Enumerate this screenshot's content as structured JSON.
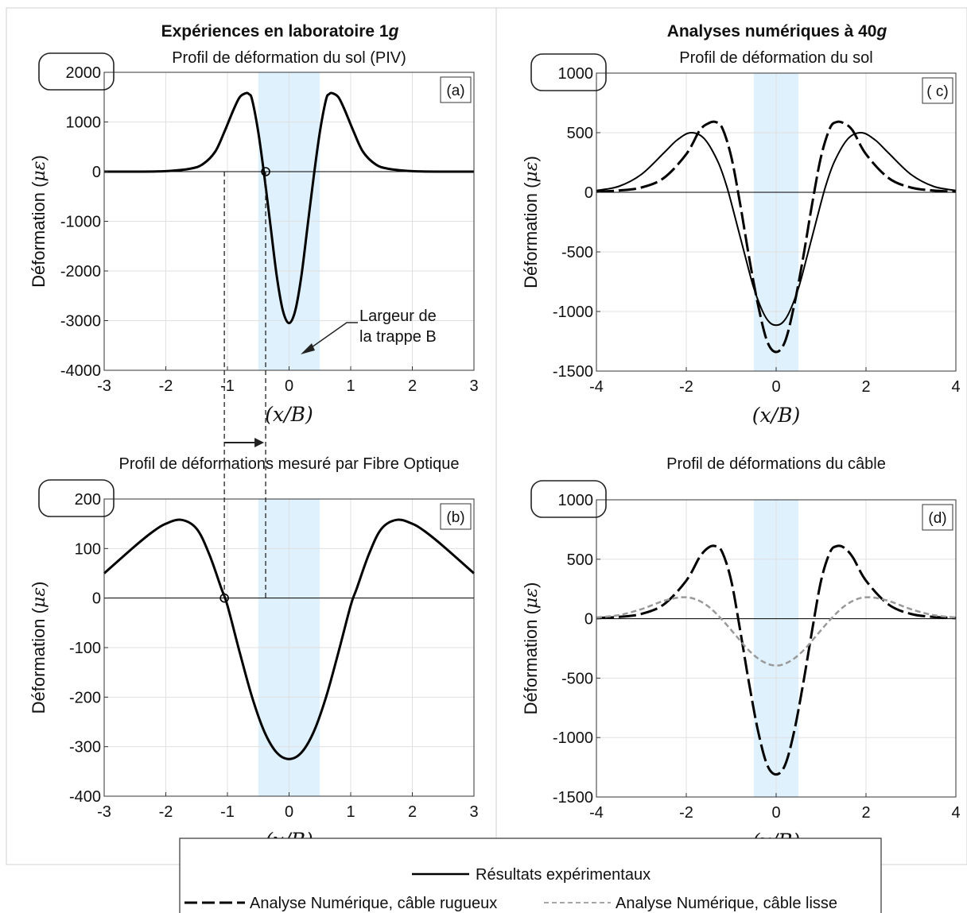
{
  "column_titles": {
    "left_prefix": "Expériences en laboratoire 1",
    "left_unit": "g",
    "right_prefix": "Analyses numériques à 40",
    "right_unit": "g"
  },
  "annotation": {
    "line1": "Largeur de",
    "line2": "la trappe B"
  },
  "colors": {
    "trapdoor_band": "#dff1fc",
    "grid": "#e0e0e0",
    "main_line": "#000000",
    "smooth_cable": "#999999"
  },
  "legend": {
    "entries": [
      {
        "label": "Résultats expérimentaux",
        "style": "solid"
      },
      {
        "label": "Analyse Numérique, câble rugueux",
        "style": "dashed"
      },
      {
        "label": "Analyse Numérique, câble lisse",
        "style": "dashed-grey"
      }
    ]
  },
  "chart_data": [
    {
      "id": "a",
      "type": "line",
      "title": "Profil de déformation du sol (PIV)",
      "panel_label": "(a)",
      "xlabel": "(x/B)",
      "ylabel_text": "Déformation (",
      "ylabel_math": "με",
      "ylabel_close": ")",
      "xlim": [
        -3,
        3
      ],
      "ylim": [
        -4000,
        2000
      ],
      "xticks": [
        -3,
        -2,
        -1,
        0,
        1,
        2,
        3
      ],
      "yticks": [
        -4000,
        -3000,
        -2000,
        -1000,
        0,
        1000,
        2000
      ],
      "highlight_band": [
        -0.5,
        0.5
      ],
      "grid": true,
      "zero_crossing_marker": [
        -0.38,
        0
      ],
      "series": [
        {
          "style": "solid",
          "x": [
            -3,
            -2.5,
            -2,
            -1.6,
            -1.4,
            -1.2,
            -1.05,
            -0.9,
            -0.8,
            -0.7,
            -0.65,
            -0.6,
            -0.5,
            -0.4,
            -0.3,
            -0.2,
            -0.1,
            0,
            0.1,
            0.2,
            0.3,
            0.4,
            0.5,
            0.6,
            0.65,
            0.7,
            0.8,
            0.9,
            1.05,
            1.2,
            1.4,
            1.6,
            2,
            2.5,
            3
          ],
          "y": [
            0,
            0,
            10,
            60,
            150,
            400,
            800,
            1250,
            1500,
            1580,
            1560,
            1450,
            800,
            -100,
            -1100,
            -2100,
            -2800,
            -3050,
            -2800,
            -2100,
            -1100,
            -100,
            800,
            1450,
            1560,
            1580,
            1500,
            1250,
            800,
            400,
            150,
            60,
            10,
            0,
            0
          ]
        }
      ]
    },
    {
      "id": "b",
      "type": "line",
      "title": "Profil de déformations mesuré par Fibre Optique",
      "panel_label": "(b)",
      "xlabel": "(x/B)",
      "ylabel_text": "Déformation (",
      "ylabel_math": "με",
      "ylabel_close": ")",
      "xlim": [
        -3,
        3
      ],
      "ylim": [
        -400,
        200
      ],
      "xticks": [
        -3,
        -2,
        -1,
        0,
        1,
        2,
        3
      ],
      "yticks": [
        -400,
        -300,
        -200,
        -100,
        0,
        100,
        200
      ],
      "highlight_band": [
        -0.5,
        0.5
      ],
      "grid": true,
      "zero_crossing_marker": [
        -1.05,
        0
      ],
      "series": [
        {
          "style": "solid",
          "x": [
            -3,
            -2.5,
            -2.2,
            -2,
            -1.75,
            -1.5,
            -1.3,
            -1.1,
            -1,
            -0.8,
            -0.6,
            -0.4,
            -0.2,
            0,
            0.2,
            0.4,
            0.6,
            0.8,
            1,
            1.1,
            1.3,
            1.5,
            1.75,
            2,
            2.2,
            2.5,
            3
          ],
          "y": [
            50,
            105,
            135,
            150,
            158,
            140,
            90,
            20,
            -15,
            -110,
            -200,
            -270,
            -312,
            -325,
            -312,
            -270,
            -200,
            -110,
            -15,
            20,
            90,
            140,
            158,
            150,
            135,
            105,
            50
          ]
        }
      ]
    },
    {
      "id": "c",
      "type": "line",
      "title": "Profil de déformation du sol",
      "panel_label": "( c)",
      "xlabel": "(x/B)",
      "ylabel_text": "Déformation (",
      "ylabel_math": "με",
      "ylabel_close": ")",
      "xlim": [
        -4,
        4
      ],
      "ylim": [
        -1500,
        1000
      ],
      "xticks": [
        -4,
        -2,
        0,
        2,
        4
      ],
      "yticks": [
        -1500,
        -1000,
        -500,
        0,
        500,
        1000
      ],
      "highlight_band": [
        -0.5,
        0.5
      ],
      "grid": true,
      "series": [
        {
          "style": "solid",
          "x": [
            -4,
            -3.5,
            -3,
            -2.5,
            -2.2,
            -1.9,
            -1.6,
            -1.3,
            -1.1,
            -0.9,
            -0.7,
            -0.5,
            -0.3,
            -0.15,
            0,
            0.15,
            0.3,
            0.5,
            0.7,
            0.9,
            1.1,
            1.3,
            1.6,
            1.9,
            2.2,
            2.5,
            3,
            3.5,
            4
          ],
          "y": [
            15,
            50,
            150,
            330,
            440,
            500,
            450,
            260,
            50,
            -230,
            -520,
            -800,
            -1000,
            -1090,
            -1115,
            -1090,
            -1000,
            -800,
            -520,
            -230,
            50,
            260,
            450,
            500,
            440,
            330,
            150,
            50,
            15
          ]
        },
        {
          "style": "dashed",
          "x": [
            -4,
            -3.5,
            -3,
            -2.5,
            -2,
            -1.7,
            -1.5,
            -1.35,
            -1.2,
            -1,
            -0.8,
            -0.6,
            -0.4,
            -0.2,
            0,
            0.2,
            0.4,
            0.6,
            0.8,
            1,
            1.2,
            1.35,
            1.5,
            1.7,
            2,
            2.5,
            3,
            3.5,
            4
          ],
          "y": [
            5,
            15,
            40,
            120,
            320,
            520,
            580,
            590,
            540,
            300,
            -100,
            -550,
            -950,
            -1250,
            -1340,
            -1250,
            -950,
            -550,
            -100,
            300,
            540,
            590,
            580,
            520,
            320,
            120,
            40,
            15,
            5
          ]
        }
      ]
    },
    {
      "id": "d",
      "type": "line",
      "title": "Profil de déformations du câble",
      "panel_label": "(d)",
      "xlabel": "(x/B)",
      "ylabel_text": "Déformation (",
      "ylabel_math": "με",
      "ylabel_close": ")",
      "xlim": [
        -4,
        4
      ],
      "ylim": [
        -1500,
        1000
      ],
      "xticks": [
        -4,
        -2,
        0,
        2,
        4
      ],
      "yticks": [
        -1500,
        -1000,
        -500,
        0,
        500,
        1000
      ],
      "highlight_band": [
        -0.5,
        0.5
      ],
      "grid": true,
      "series": [
        {
          "style": "dashed",
          "x": [
            -4,
            -3.5,
            -3,
            -2.5,
            -2,
            -1.7,
            -1.5,
            -1.35,
            -1.2,
            -1,
            -0.8,
            -0.6,
            -0.4,
            -0.2,
            0,
            0.2,
            0.4,
            0.6,
            0.8,
            1,
            1.2,
            1.35,
            1.5,
            1.7,
            2,
            2.5,
            3,
            3.5,
            4
          ],
          "y": [
            5,
            15,
            40,
            120,
            320,
            520,
            600,
            610,
            560,
            320,
            -100,
            -550,
            -950,
            -1230,
            -1310,
            -1230,
            -950,
            -550,
            -100,
            320,
            560,
            610,
            600,
            520,
            320,
            120,
            40,
            15,
            5
          ]
        },
        {
          "style": "dashed-grey",
          "x": [
            -4,
            -3.5,
            -3,
            -2.5,
            -2.1,
            -1.8,
            -1.5,
            -1.2,
            -0.9,
            -0.6,
            -0.3,
            0,
            0.3,
            0.6,
            0.9,
            1.2,
            1.5,
            1.8,
            2.1,
            2.5,
            3,
            3.5,
            4
          ],
          "y": [
            10,
            30,
            80,
            150,
            180,
            165,
            100,
            -10,
            -140,
            -270,
            -360,
            -395,
            -360,
            -270,
            -140,
            -10,
            100,
            165,
            180,
            150,
            80,
            30,
            10
          ]
        }
      ]
    }
  ]
}
